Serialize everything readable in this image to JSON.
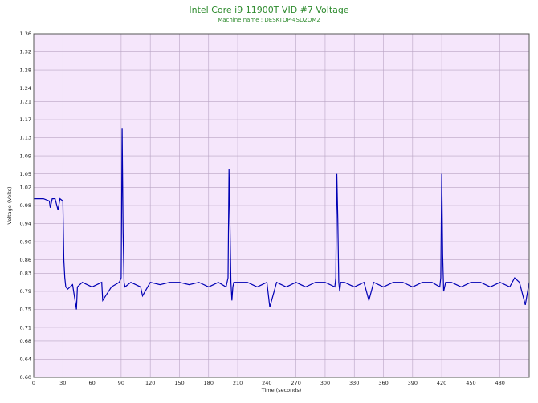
{
  "chart_data": {
    "type": "line",
    "title": "Intel Core i9 11900T VID #7 Voltage",
    "subtitle": "Machine name : DESKTOP-4SD2OM2",
    "xlabel": "Time (seconds)",
    "ylabel": "Voltage (Volts)",
    "xlim": [
      0,
      510
    ],
    "ylim": [
      0.6,
      1.36
    ],
    "x_ticks": [
      0,
      30,
      60,
      90,
      120,
      150,
      180,
      210,
      240,
      270,
      300,
      330,
      360,
      390,
      420,
      450,
      480
    ],
    "y_ticks": [
      0.6,
      0.64,
      0.68,
      0.71,
      0.75,
      0.79,
      0.83,
      0.86,
      0.9,
      0.94,
      0.98,
      1.02,
      1.05,
      1.09,
      1.13,
      1.17,
      1.21,
      1.24,
      1.28,
      1.32,
      1.36
    ],
    "grid": true,
    "background": "#f5e6fb",
    "line_color": "#0000b4",
    "series": [
      {
        "x": [
          0,
          10,
          16,
          17,
          19,
          22,
          25,
          27,
          30,
          31,
          32,
          33,
          35,
          40,
          44,
          45,
          50,
          60,
          70,
          71,
          80,
          88,
          90,
          91,
          92,
          93,
          94,
          100,
          110,
          112,
          120,
          130,
          140,
          150,
          160,
          170,
          180,
          190,
          198,
          200,
          201,
          202,
          203,
          204,
          205,
          206,
          210,
          220,
          230,
          240,
          243,
          250,
          260,
          270,
          280,
          290,
          300,
          310,
          311,
          312,
          313,
          314,
          315,
          316,
          320,
          330,
          340,
          345,
          350,
          360,
          370,
          380,
          390,
          400,
          410,
          418,
          419,
          420,
          421,
          422,
          424,
          430,
          440,
          450,
          460,
          470,
          480,
          490,
          495,
          500,
          506,
          510
        ],
        "y": [
          0.995,
          0.995,
          0.99,
          0.975,
          0.995,
          0.995,
          0.97,
          0.995,
          0.99,
          0.86,
          0.82,
          0.8,
          0.795,
          0.805,
          0.75,
          0.8,
          0.81,
          0.8,
          0.81,
          0.77,
          0.8,
          0.81,
          0.82,
          1.15,
          0.92,
          0.81,
          0.8,
          0.81,
          0.8,
          0.78,
          0.81,
          0.805,
          0.81,
          0.81,
          0.805,
          0.81,
          0.8,
          0.81,
          0.8,
          0.82,
          1.06,
          0.94,
          0.81,
          0.77,
          0.8,
          0.81,
          0.81,
          0.81,
          0.8,
          0.81,
          0.755,
          0.81,
          0.8,
          0.81,
          0.8,
          0.81,
          0.81,
          0.8,
          0.82,
          1.05,
          0.95,
          0.81,
          0.79,
          0.81,
          0.81,
          0.8,
          0.81,
          0.77,
          0.81,
          0.8,
          0.81,
          0.81,
          0.8,
          0.81,
          0.81,
          0.8,
          0.82,
          1.05,
          0.87,
          0.79,
          0.81,
          0.81,
          0.8,
          0.81,
          0.81,
          0.8,
          0.81,
          0.8,
          0.82,
          0.81,
          0.76,
          0.81
        ]
      }
    ]
  }
}
